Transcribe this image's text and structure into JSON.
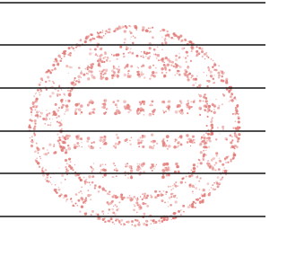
{
  "stamp": {
    "color": "#d9534f"
  }
}
